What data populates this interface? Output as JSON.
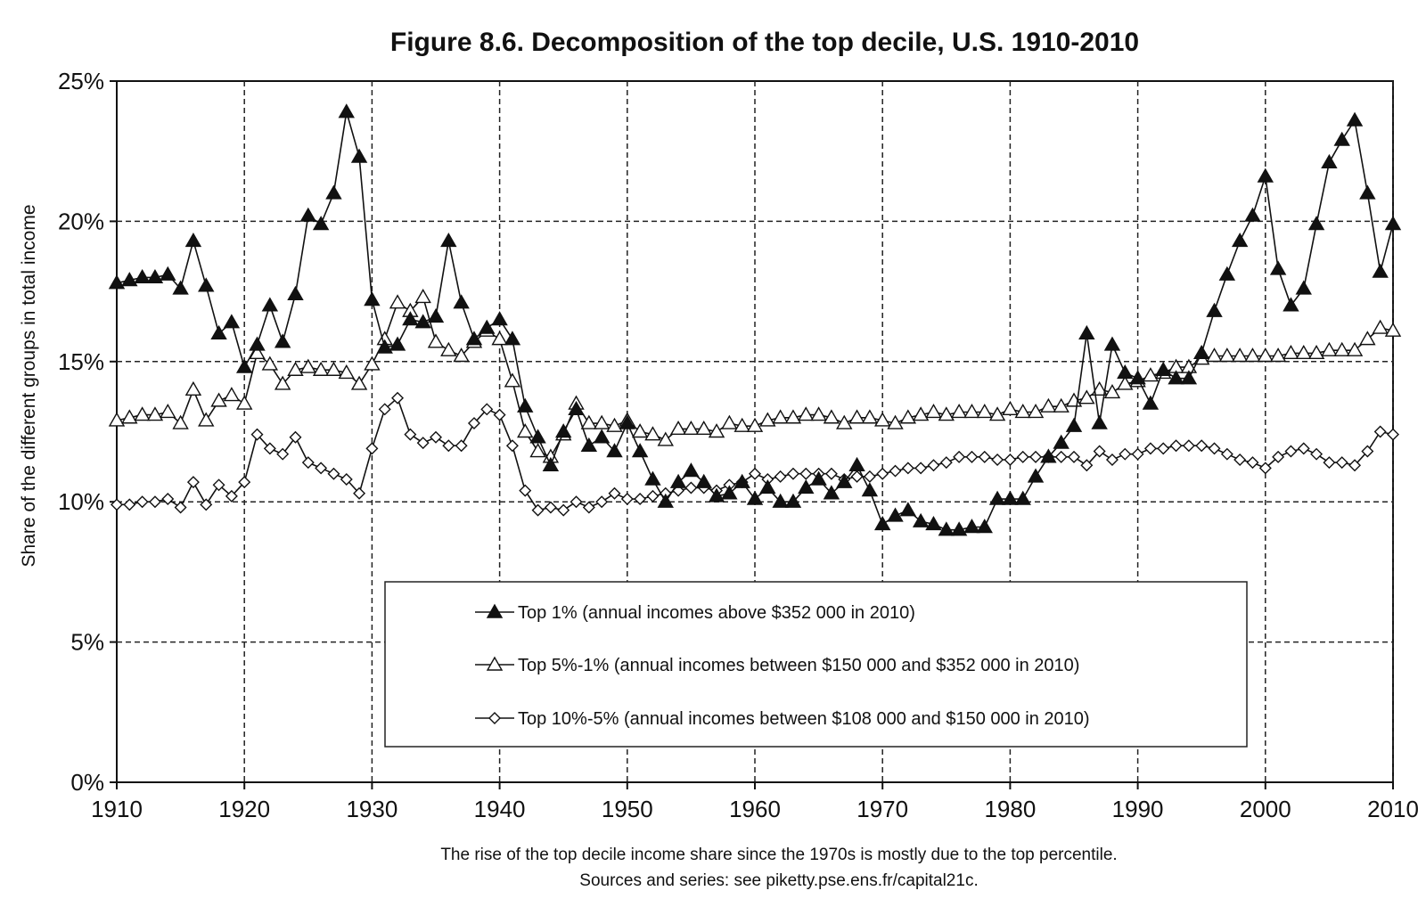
{
  "chart_data": {
    "type": "line",
    "title": "Figure 8.6. Decomposition of the top decile, U.S. 1910-2010",
    "xlabel": "",
    "ylabel": "Share of the different groups in total income",
    "xlim": [
      1910,
      2010
    ],
    "ylim": [
      0,
      25
    ],
    "x_ticks": [
      "1910",
      "1920",
      "1930",
      "1940",
      "1950",
      "1960",
      "1970",
      "1980",
      "1990",
      "2000",
      "2010"
    ],
    "y_ticks": [
      "0%",
      "5%",
      "10%",
      "15%",
      "20%",
      "25%"
    ],
    "grid": true,
    "legend_position": "bottom-center",
    "x": [
      1910,
      1911,
      1912,
      1913,
      1914,
      1915,
      1916,
      1917,
      1918,
      1919,
      1920,
      1921,
      1922,
      1923,
      1924,
      1925,
      1926,
      1927,
      1928,
      1929,
      1930,
      1931,
      1932,
      1933,
      1934,
      1935,
      1936,
      1937,
      1938,
      1939,
      1940,
      1941,
      1942,
      1943,
      1944,
      1945,
      1946,
      1947,
      1948,
      1949,
      1950,
      1951,
      1952,
      1953,
      1954,
      1955,
      1956,
      1957,
      1958,
      1959,
      1960,
      1961,
      1962,
      1963,
      1964,
      1965,
      1966,
      1967,
      1968,
      1969,
      1970,
      1971,
      1972,
      1973,
      1974,
      1975,
      1976,
      1977,
      1978,
      1979,
      1980,
      1981,
      1982,
      1983,
      1984,
      1985,
      1986,
      1987,
      1988,
      1989,
      1990,
      1991,
      1992,
      1993,
      1994,
      1995,
      1996,
      1997,
      1998,
      1999,
      2000,
      2001,
      2002,
      2003,
      2004,
      2005,
      2006,
      2007,
      2008,
      2009,
      2010
    ],
    "series": [
      {
        "name": "Top 1% (annual incomes above $352 000 in 2010)",
        "marker": "filled-triangle",
        "values": [
          17.8,
          17.9,
          18.0,
          18.0,
          18.1,
          17.6,
          19.3,
          17.7,
          16.0,
          16.4,
          14.8,
          15.6,
          17.0,
          15.7,
          17.4,
          20.2,
          19.9,
          21.0,
          23.9,
          22.3,
          17.2,
          15.5,
          15.6,
          16.5,
          16.4,
          16.6,
          19.3,
          17.1,
          15.8,
          16.2,
          16.5,
          15.8,
          13.4,
          12.3,
          11.3,
          12.5,
          13.3,
          12.0,
          12.3,
          11.8,
          12.8,
          11.8,
          10.8,
          10.0,
          10.7,
          11.1,
          10.7,
          10.2,
          10.3,
          10.7,
          10.1,
          10.5,
          10.0,
          10.0,
          10.5,
          10.8,
          10.3,
          10.7,
          11.3,
          10.4,
          9.2,
          9.5,
          9.7,
          9.3,
          9.2,
          9.0,
          9.0,
          9.1,
          9.1,
          10.1,
          10.1,
          10.1,
          10.9,
          11.6,
          12.1,
          12.7,
          16.0,
          12.8,
          15.6,
          14.6,
          14.4,
          13.5,
          14.7,
          14.4,
          14.4,
          15.3,
          16.8,
          18.1,
          19.3,
          20.2,
          21.6,
          18.3,
          17.0,
          17.6,
          19.9,
          22.1,
          22.9,
          23.6,
          21.0,
          18.2,
          19.9
        ]
      },
      {
        "name": "Top 5%-1% (annual incomes between $150 000 and $352 000 in 2010)",
        "marker": "hollow-triangle",
        "values": [
          12.9,
          13.0,
          13.1,
          13.1,
          13.2,
          12.8,
          14.0,
          12.9,
          13.6,
          13.8,
          13.5,
          15.3,
          14.9,
          14.2,
          14.7,
          14.8,
          14.7,
          14.7,
          14.6,
          14.2,
          14.9,
          15.8,
          17.1,
          16.8,
          17.3,
          15.7,
          15.4,
          15.2,
          15.7,
          16.1,
          15.8,
          14.3,
          12.5,
          11.8,
          11.6,
          12.4,
          13.5,
          12.8,
          12.8,
          12.7,
          12.9,
          12.5,
          12.4,
          12.2,
          12.6,
          12.6,
          12.6,
          12.5,
          12.8,
          12.7,
          12.7,
          12.9,
          13.0,
          13.0,
          13.1,
          13.1,
          13.0,
          12.8,
          13.0,
          13.0,
          12.9,
          12.8,
          13.0,
          13.1,
          13.2,
          13.1,
          13.2,
          13.2,
          13.2,
          13.1,
          13.3,
          13.2,
          13.2,
          13.4,
          13.4,
          13.6,
          13.7,
          14.0,
          13.9,
          14.2,
          14.3,
          14.5,
          14.6,
          14.8,
          14.8,
          15.1,
          15.2,
          15.2,
          15.2,
          15.2,
          15.2,
          15.2,
          15.3,
          15.3,
          15.3,
          15.4,
          15.4,
          15.4,
          15.8,
          16.2,
          16.1
        ]
      },
      {
        "name": "Top 10%-5% (annual incomes between $108 000 and $150 000 in 2010)",
        "marker": "hollow-diamond",
        "values": [
          9.9,
          9.9,
          10.0,
          10.0,
          10.1,
          9.8,
          10.7,
          9.9,
          10.6,
          10.2,
          10.7,
          12.4,
          11.9,
          11.7,
          12.3,
          11.4,
          11.2,
          11.0,
          10.8,
          10.3,
          11.9,
          13.3,
          13.7,
          12.4,
          12.1,
          12.3,
          12.0,
          12.0,
          12.8,
          13.3,
          13.1,
          12.0,
          10.4,
          9.7,
          9.8,
          9.7,
          10.0,
          9.8,
          10.0,
          10.3,
          10.1,
          10.1,
          10.2,
          10.3,
          10.4,
          10.5,
          10.5,
          10.4,
          10.6,
          10.7,
          11.0,
          10.8,
          10.9,
          11.0,
          11.0,
          11.0,
          11.0,
          10.8,
          10.9,
          10.9,
          11.0,
          11.1,
          11.2,
          11.2,
          11.3,
          11.4,
          11.6,
          11.6,
          11.6,
          11.5,
          11.5,
          11.6,
          11.6,
          11.6,
          11.6,
          11.6,
          11.3,
          11.8,
          11.5,
          11.7,
          11.7,
          11.9,
          11.9,
          12.0,
          12.0,
          12.0,
          11.9,
          11.7,
          11.5,
          11.4,
          11.2,
          11.6,
          11.8,
          11.9,
          11.7,
          11.4,
          11.4,
          11.3,
          11.8,
          12.5,
          12.4
        ]
      }
    ],
    "caption": "The rise of the top decile income share since the 1970s is mostly due to the top percentile.",
    "source": "Sources and series: see piketty.pse.ens.fr/capital21c."
  }
}
